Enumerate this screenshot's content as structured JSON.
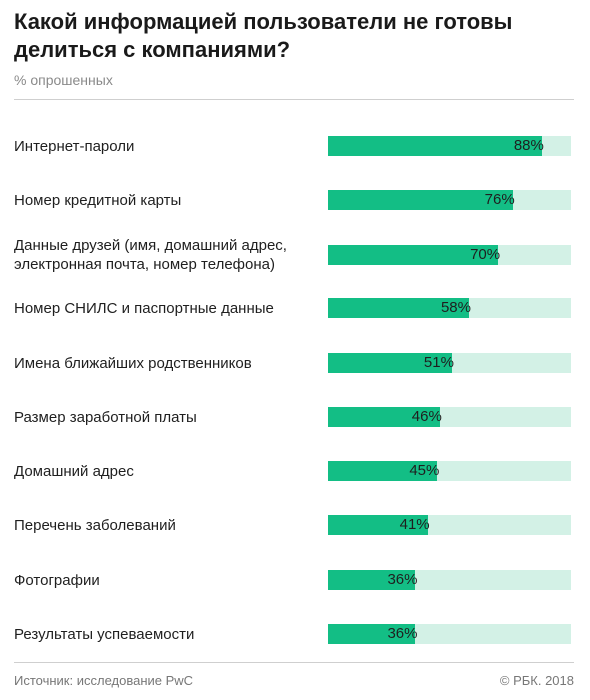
{
  "title": "Какой информацией пользователи не готовы делиться с компаниями?",
  "subtitle": "% опрошенных",
  "chart_data": {
    "type": "bar",
    "orientation": "horizontal",
    "categories": [
      "Интернет-пароли",
      "Номер кредитной карты",
      "Данные друзей (имя, домашний адрес, электронная почта, номер телефона)",
      "Номер СНИЛС и паспортные данные",
      "Имена ближайших родственников",
      "Размер заработной платы",
      "Домашний адрес",
      "Перечень заболеваний",
      "Фотографии",
      "Результаты успеваемости"
    ],
    "values": [
      88,
      76,
      70,
      58,
      51,
      46,
      45,
      41,
      36,
      36
    ],
    "labels": [
      "88%",
      "76%",
      "70%",
      "58%",
      "51%",
      "46%",
      "45%",
      "41%",
      "36%",
      "36%"
    ],
    "xlim": [
      0,
      100
    ],
    "colors": {
      "bar": "#13be85",
      "track": "#d3f1e6"
    }
  },
  "footer": {
    "source": "Источник: исследование PwC",
    "credit": "© РБК. 2018"
  }
}
